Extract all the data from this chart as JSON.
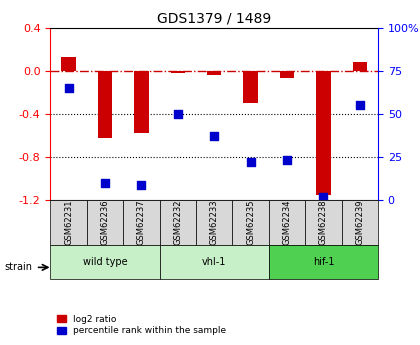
{
  "title": "GDS1379 / 1489",
  "samples": [
    "GSM62231",
    "GSM62236",
    "GSM62237",
    "GSM62232",
    "GSM62233",
    "GSM62235",
    "GSM62234",
    "GSM62238",
    "GSM62239"
  ],
  "log2_ratio": [
    0.13,
    -0.62,
    -0.58,
    -0.02,
    -0.04,
    -0.3,
    -0.07,
    -1.15,
    0.08
  ],
  "percentile_rank": [
    65,
    10,
    9,
    50,
    37,
    22,
    23,
    2,
    55
  ],
  "groups": [
    {
      "label": "wild type",
      "start": 0,
      "end": 3,
      "color": "#c8f0c8"
    },
    {
      "label": "vhl-1",
      "start": 3,
      "end": 6,
      "color": "#c8f0c8"
    },
    {
      "label": "hif-1",
      "start": 6,
      "end": 9,
      "color": "#50d050"
    }
  ],
  "ylim_left": [
    -1.2,
    0.4
  ],
  "ylim_right": [
    0,
    100
  ],
  "yticks_left": [
    -1.2,
    -0.8,
    -0.4,
    0.0,
    0.4
  ],
  "yticks_right": [
    0,
    25,
    50,
    75,
    100
  ],
  "bar_color": "#cc0000",
  "dot_color": "#0000cc",
  "bar_width": 0.4,
  "dot_size": 30,
  "hline_y": 0.0,
  "dotted_lines": [
    -0.4,
    -0.8
  ],
  "background_color": "#ffffff",
  "plot_bg_color": "#ffffff",
  "legend_red_label": "log2 ratio",
  "legend_blue_label": "percentile rank within the sample"
}
